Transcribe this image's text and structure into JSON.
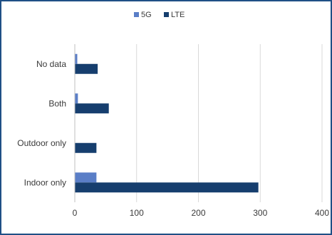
{
  "chart_data": {
    "type": "bar",
    "orientation": "horizontal",
    "categories": [
      "Indoor only",
      "Outdoor only",
      "Both",
      "No data"
    ],
    "series": [
      {
        "name": "5G",
        "values": [
          35,
          0,
          5,
          4
        ],
        "color": "#5a7ec7"
      },
      {
        "name": "LTE",
        "values": [
          297,
          35,
          55,
          37
        ],
        "color": "#163e6e"
      }
    ],
    "xlim": [
      0,
      400
    ],
    "xticks": [
      0,
      100,
      200,
      300,
      400
    ],
    "grid": true,
    "legend": "top-center",
    "title": "",
    "xlabel": "",
    "ylabel": ""
  }
}
